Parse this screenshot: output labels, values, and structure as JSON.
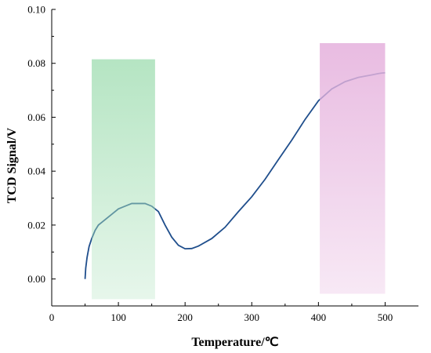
{
  "chart_data": {
    "type": "line",
    "title": "",
    "xlabel": "Temperature/℃",
    "ylabel": "TCD Signal/V",
    "xlim": [
      0,
      550
    ],
    "ylim": [
      -0.01,
      0.1
    ],
    "x_ticks": [
      0,
      100,
      200,
      300,
      400,
      500
    ],
    "x_tick_labels": [
      "0",
      "100",
      "200",
      "300",
      "400",
      "500"
    ],
    "y_ticks": [
      0.0,
      0.02,
      0.04,
      0.06,
      0.08,
      0.1
    ],
    "y_tick_labels": [
      "0.00",
      "0.02",
      "0.04",
      "0.06",
      "0.08",
      "0.10"
    ],
    "grid": false,
    "legend": "none",
    "series": [
      {
        "color": "#1f4e8c",
        "x": [
          50,
          51,
          53,
          56,
          60,
          65,
          70,
          80,
          90,
          100,
          110,
          120,
          130,
          140,
          150,
          155,
          160,
          170,
          180,
          190,
          200,
          210,
          220,
          240,
          260,
          280,
          300,
          320,
          340,
          360,
          380,
          400,
          420,
          440,
          460,
          480,
          490,
          495,
          500
        ],
        "y": [
          0.0,
          0.004,
          0.008,
          0.012,
          0.015,
          0.018,
          0.02,
          0.022,
          0.024,
          0.026,
          0.027,
          0.028,
          0.028,
          0.028,
          0.027,
          0.026,
          0.025,
          0.02,
          0.0155,
          0.0125,
          0.0112,
          0.0113,
          0.0122,
          0.015,
          0.0192,
          0.025,
          0.0305,
          0.037,
          0.0443,
          0.0515,
          0.0592,
          0.0661,
          0.0705,
          0.0732,
          0.0748,
          0.0757,
          0.0762,
          0.0764,
          0.0765
        ]
      }
    ],
    "highlight_bands": [
      {
        "x": [
          60,
          155
        ],
        "y": [
          -0.0075,
          0.0815
        ],
        "color": "#a8e0b8",
        "gradient": "fade-down"
      },
      {
        "x": [
          402,
          500
        ],
        "y": [
          -0.0055,
          0.0875
        ],
        "color": "#e6b4de",
        "gradient": "fade-down"
      }
    ]
  }
}
